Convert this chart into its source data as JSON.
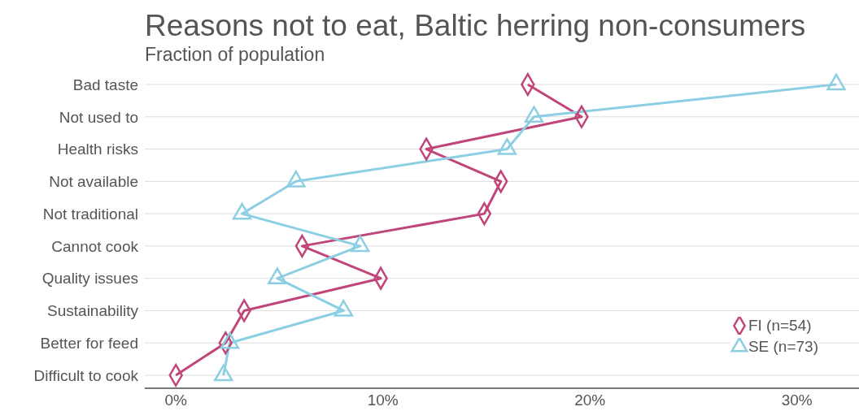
{
  "chart_data": {
    "type": "line",
    "title": "Reasons not to eat, Baltic herring non-consumers",
    "subtitle": "Fraction of population",
    "orientation": "horizontal",
    "categories": [
      "Bad taste",
      "Not used to",
      "Health risks",
      "Not available",
      "Not traditional",
      "Cannot cook",
      "Quality issues",
      "Sustainability",
      "Better for feed",
      "Difficult to cook"
    ],
    "series": [
      {
        "name": "FI (n=54)",
        "color": "#c0457a",
        "marker": "diamond",
        "values": [
          17.0,
          19.6,
          12.1,
          15.7,
          14.9,
          6.1,
          9.9,
          3.3,
          2.4,
          0
        ]
      },
      {
        "name": "SE (n=73)",
        "color": "#8ccfe3",
        "marker": "triangle",
        "values": [
          31.9,
          17.3,
          16.0,
          5.8,
          3.2,
          8.9,
          4.9,
          8.1,
          2.6,
          2.3
        ]
      }
    ],
    "xlim": [
      -1.5,
      33
    ],
    "xticks": [
      {
        "value": 0,
        "label": "0%"
      },
      {
        "value": 10,
        "label": "10%"
      },
      {
        "value": 20,
        "label": "20%"
      },
      {
        "value": 30,
        "label": "30%"
      }
    ],
    "grid": "y",
    "legend": "bottom right"
  }
}
